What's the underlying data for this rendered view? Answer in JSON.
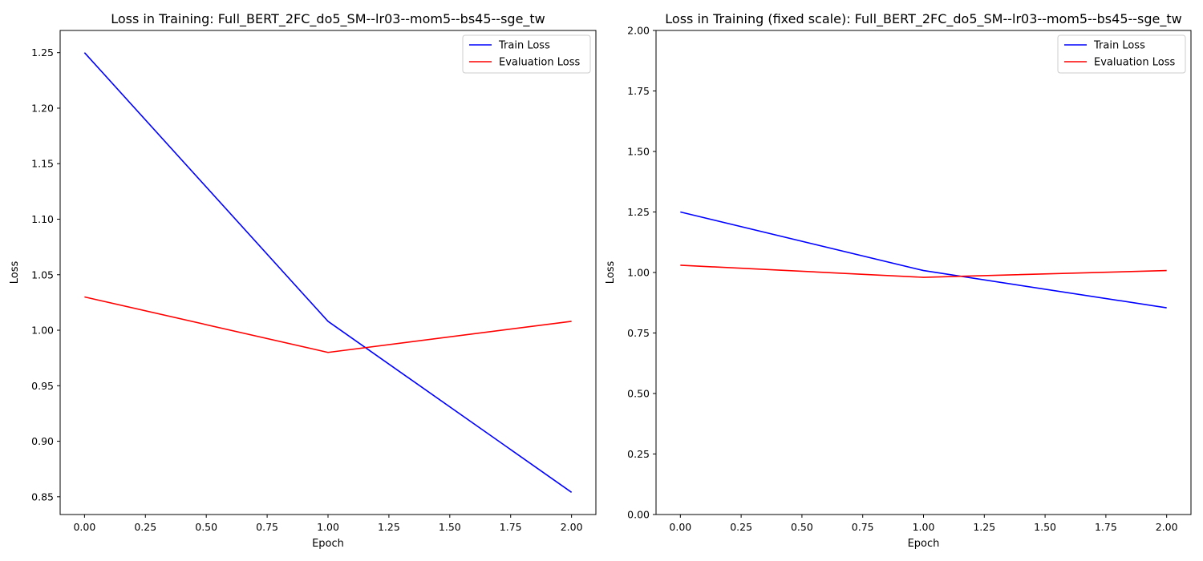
{
  "chart_data": [
    {
      "type": "line",
      "title": "Loss in Training: Full_BERT_2FC_do5_SM--lr03--mom5--bs45--sge_tw",
      "xlabel": "Epoch",
      "ylabel": "Loss",
      "x": [
        0,
        1,
        2
      ],
      "xlim": [
        -0.1,
        2.1
      ],
      "ylim": [
        0.834,
        1.27
      ],
      "x_ticks": [
        "0.00",
        "0.25",
        "0.50",
        "0.75",
        "1.00",
        "1.25",
        "1.50",
        "1.75",
        "2.00"
      ],
      "y_ticks": [
        "0.85",
        "0.90",
        "0.95",
        "1.00",
        "1.05",
        "1.10",
        "1.15",
        "1.20",
        "1.25"
      ],
      "grid": false,
      "legend_position": "top-right",
      "series": [
        {
          "name": "Train Loss",
          "color": "#0000ff",
          "values": [
            1.25,
            1.008,
            0.854
          ]
        },
        {
          "name": "Evaluation Loss",
          "color": "#ff0000",
          "values": [
            1.03,
            0.98,
            1.008
          ]
        }
      ]
    },
    {
      "type": "line",
      "title": "Loss in Training (fixed scale): Full_BERT_2FC_do5_SM--lr03--mom5--bs45--sge_tw",
      "xlabel": "Epoch",
      "ylabel": "Loss",
      "x": [
        0,
        1,
        2
      ],
      "xlim": [
        -0.1,
        2.1
      ],
      "ylim": [
        0,
        2
      ],
      "x_ticks": [
        "0.00",
        "0.25",
        "0.50",
        "0.75",
        "1.00",
        "1.25",
        "1.50",
        "1.75",
        "2.00"
      ],
      "y_ticks": [
        "0.00",
        "0.25",
        "0.50",
        "0.75",
        "1.00",
        "1.25",
        "1.50",
        "1.75",
        "2.00"
      ],
      "grid": false,
      "legend_position": "top-right",
      "series": [
        {
          "name": "Train Loss",
          "color": "#0000ff",
          "values": [
            1.25,
            1.008,
            0.854
          ]
        },
        {
          "name": "Evaluation Loss",
          "color": "#ff0000",
          "values": [
            1.03,
            0.98,
            1.008
          ]
        }
      ]
    }
  ]
}
